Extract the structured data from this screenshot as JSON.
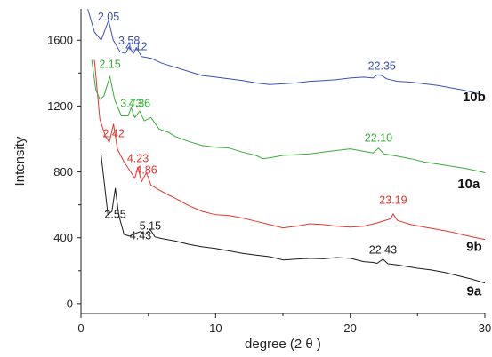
{
  "chart_data": {
    "type": "line",
    "xlabel": "degree (2 θ )",
    "ylabel": "Intensity",
    "xlim": [
      0,
      30
    ],
    "ylim": [
      -60,
      1790
    ],
    "x_ticks": [
      0,
      10,
      20,
      30
    ],
    "x_tick_labels": [
      "0",
      "10",
      "20",
      "30"
    ],
    "y_ticks": [
      0,
      400,
      800,
      1200,
      1600
    ],
    "y_tick_labels": [
      "0",
      "400",
      "800",
      "1200",
      "1600"
    ],
    "grid": false,
    "series": [
      {
        "name": "9a",
        "color": "#1a1a1a",
        "points": [
          [
            1.5,
            900
          ],
          [
            2.0,
            540
          ],
          [
            2.3,
            560
          ],
          [
            2.55,
            700
          ],
          [
            2.8,
            540
          ],
          [
            3.2,
            420
          ],
          [
            3.6,
            410
          ],
          [
            4.0,
            425
          ],
          [
            4.43,
            438
          ],
          [
            4.8,
            420
          ],
          [
            5.15,
            450
          ],
          [
            5.5,
            405
          ],
          [
            6,
            395
          ],
          [
            7,
            380
          ],
          [
            8,
            360
          ],
          [
            9,
            345
          ],
          [
            10,
            335
          ],
          [
            11,
            320
          ],
          [
            12,
            305
          ],
          [
            13,
            295
          ],
          [
            14,
            285
          ],
          [
            15,
            265
          ],
          [
            16,
            270
          ],
          [
            17,
            275
          ],
          [
            18,
            272
          ],
          [
            19,
            280
          ],
          [
            20,
            275
          ],
          [
            21,
            255
          ],
          [
            21.7,
            250
          ],
          [
            22.0,
            245
          ],
          [
            22.43,
            270
          ],
          [
            22.8,
            242
          ],
          [
            23.5,
            235
          ],
          [
            25,
            215
          ],
          [
            26,
            205
          ],
          [
            27,
            190
          ],
          [
            28,
            170
          ],
          [
            29,
            150
          ],
          [
            30,
            125
          ]
        ],
        "labels": [
          {
            "text": "2.55",
            "x": 2.55,
            "y": 520,
            "color": "#1a1a1a"
          },
          {
            "text": "4.43",
            "x": 4.43,
            "y": 390,
            "color": "#1a1a1a"
          },
          {
            "text": "5.15",
            "x": 5.15,
            "y": 450,
            "color": "#1a1a1a"
          },
          {
            "text": "22.43",
            "x": 22.43,
            "y": 305,
            "color": "#1a1a1a"
          }
        ]
      },
      {
        "name": "9b",
        "color": "#e8352e",
        "points": [
          [
            1.0,
            1480
          ],
          [
            1.4,
            1120
          ],
          [
            1.8,
            1020
          ],
          [
            2.1,
            980
          ],
          [
            2.42,
            1090
          ],
          [
            2.7,
            940
          ],
          [
            3.2,
            860
          ],
          [
            3.7,
            800
          ],
          [
            4.0,
            760
          ],
          [
            4.23,
            830
          ],
          [
            4.5,
            740
          ],
          [
            4.86,
            795
          ],
          [
            5.2,
            720
          ],
          [
            5.8,
            690
          ],
          [
            6.5,
            660
          ],
          [
            7,
            640
          ],
          [
            8,
            595
          ],
          [
            9,
            560
          ],
          [
            10,
            540
          ],
          [
            11,
            535
          ],
          [
            12,
            520
          ],
          [
            13,
            500
          ],
          [
            14,
            480
          ],
          [
            15,
            460
          ],
          [
            16,
            470
          ],
          [
            17,
            485
          ],
          [
            18,
            480
          ],
          [
            19,
            470
          ],
          [
            20,
            465
          ],
          [
            21,
            470
          ],
          [
            22,
            490
          ],
          [
            23.0,
            515
          ],
          [
            23.19,
            545
          ],
          [
            23.5,
            505
          ],
          [
            24.5,
            480
          ],
          [
            25.5,
            465
          ],
          [
            26.5,
            450
          ],
          [
            27.5,
            435
          ],
          [
            28.5,
            415
          ],
          [
            29.5,
            398
          ],
          [
            30,
            390
          ]
        ],
        "labels": [
          {
            "text": "2.42",
            "x": 2.42,
            "y": 1010,
            "color": "#e8352e"
          },
          {
            "text": "4.23",
            "x": 4.23,
            "y": 860,
            "color": "#e8352e"
          },
          {
            "text": "4.86",
            "x": 4.86,
            "y": 790,
            "color": "#e8352e"
          },
          {
            "text": "23.19",
            "x": 23.19,
            "y": 605,
            "color": "#e8352e"
          }
        ]
      },
      {
        "name": "10a",
        "color": "#3aad3a",
        "points": [
          [
            0.8,
            1480
          ],
          [
            1.1,
            1300
          ],
          [
            1.4,
            1240
          ],
          [
            1.7,
            1260
          ],
          [
            2.15,
            1380
          ],
          [
            2.5,
            1240
          ],
          [
            3.0,
            1140
          ],
          [
            3.5,
            1140
          ],
          [
            3.73,
            1190
          ],
          [
            4.0,
            1130
          ],
          [
            4.36,
            1170
          ],
          [
            4.7,
            1110
          ],
          [
            5.2,
            1130
          ],
          [
            5.8,
            1060
          ],
          [
            6.5,
            1040
          ],
          [
            7,
            1015
          ],
          [
            8,
            985
          ],
          [
            9,
            960
          ],
          [
            10,
            950
          ],
          [
            11,
            945
          ],
          [
            12,
            920
          ],
          [
            13,
            900
          ],
          [
            13.5,
            880
          ],
          [
            14,
            885
          ],
          [
            15,
            900
          ],
          [
            16,
            905
          ],
          [
            17,
            910
          ],
          [
            18,
            920
          ],
          [
            19,
            930
          ],
          [
            20,
            940
          ],
          [
            21,
            925
          ],
          [
            21.7,
            915
          ],
          [
            22.1,
            945
          ],
          [
            22.5,
            910
          ],
          [
            23.5,
            895
          ],
          [
            24.5,
            880
          ],
          [
            25.5,
            860
          ],
          [
            26.5,
            848
          ],
          [
            27.5,
            835
          ],
          [
            28.5,
            822
          ],
          [
            29.5,
            805
          ],
          [
            30,
            795
          ]
        ],
        "labels": [
          {
            "text": "2.15",
            "x": 2.15,
            "y": 1430,
            "color": "#3aad3a"
          },
          {
            "text": "3.73",
            "x": 3.73,
            "y": 1195,
            "color": "#3aad3a"
          },
          {
            "text": "4.36",
            "x": 4.36,
            "y": 1195,
            "color": "#3aad3a"
          },
          {
            "text": "22.10",
            "x": 22.1,
            "y": 985,
            "color": "#3aad3a"
          }
        ]
      },
      {
        "name": "10b",
        "color": "#3b50b5",
        "points": [
          [
            0.5,
            1790
          ],
          [
            1.0,
            1650
          ],
          [
            1.5,
            1600
          ],
          [
            2.05,
            1720
          ],
          [
            2.4,
            1600
          ],
          [
            2.9,
            1530
          ],
          [
            3.3,
            1520
          ],
          [
            3.58,
            1560
          ],
          [
            3.9,
            1520
          ],
          [
            4.12,
            1555
          ],
          [
            4.5,
            1500
          ],
          [
            5.2,
            1490
          ],
          [
            6,
            1460
          ],
          [
            7,
            1435
          ],
          [
            8,
            1410
          ],
          [
            9,
            1385
          ],
          [
            10,
            1375
          ],
          [
            11,
            1365
          ],
          [
            12,
            1355
          ],
          [
            13,
            1340
          ],
          [
            14,
            1330
          ],
          [
            15,
            1335
          ],
          [
            16,
            1340
          ],
          [
            17,
            1350
          ],
          [
            18,
            1355
          ],
          [
            19,
            1360
          ],
          [
            20,
            1370
          ],
          [
            21,
            1375
          ],
          [
            21.7,
            1370
          ],
          [
            22.0,
            1390
          ],
          [
            22.35,
            1385
          ],
          [
            22.7,
            1365
          ],
          [
            23.5,
            1350
          ],
          [
            24.5,
            1345
          ],
          [
            25.5,
            1335
          ],
          [
            26.5,
            1325
          ],
          [
            27.5,
            1310
          ],
          [
            28.5,
            1295
          ],
          [
            29.5,
            1275
          ],
          [
            30,
            1265
          ]
        ],
        "labels": [
          {
            "text": "2.05",
            "x": 2.05,
            "y": 1720,
            "color": "#3b50b5"
          },
          {
            "text": "3.58",
            "x": 3.58,
            "y": 1575,
            "color": "#3b50b5"
          },
          {
            "text": "4.12",
            "x": 4.12,
            "y": 1540,
            "color": "#3b50b5"
          },
          {
            "text": "22.35",
            "x": 22.35,
            "y": 1420,
            "color": "#3b50b5"
          }
        ]
      }
    ],
    "series_labels": [
      {
        "text": "10b",
        "x": 29.2,
        "y": 1230
      },
      {
        "text": "10a",
        "x": 28.8,
        "y": 700
      },
      {
        "text": "9b",
        "x": 29.2,
        "y": 320
      },
      {
        "text": "9a",
        "x": 29.2,
        "y": 50
      }
    ]
  }
}
